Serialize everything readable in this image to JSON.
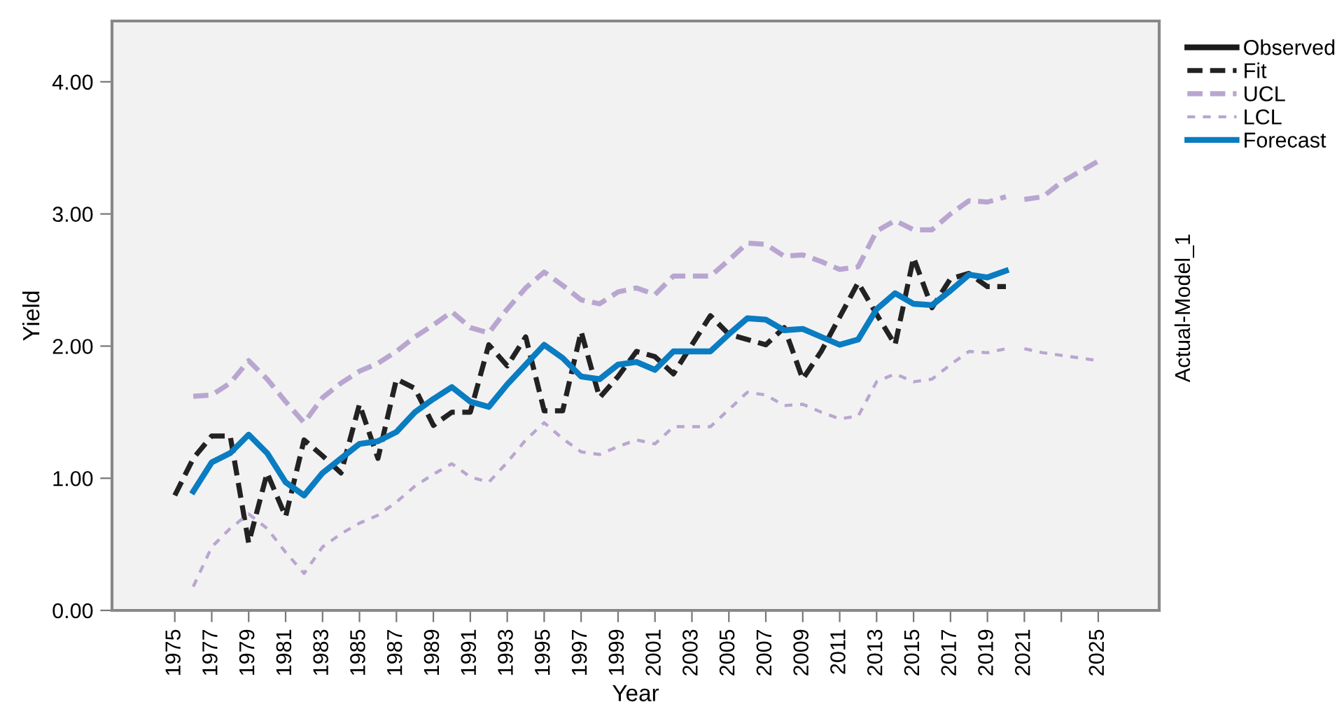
{
  "chart_data": {
    "type": "line",
    "xlabel": "Year",
    "ylabel": "Yield",
    "annotations": [
      "Actual-Model_1"
    ],
    "xlim": [
      1971.6,
      2028.3
    ],
    "xticks": [
      1975,
      1977,
      1979,
      1981,
      1983,
      1985,
      1987,
      1989,
      1991,
      1993,
      1995,
      1997,
      1999,
      2001,
      2003,
      2005,
      2007,
      2009,
      2011,
      2013,
      2015,
      2017,
      2019,
      2021,
      {
        "value": 2023,
        "label": null
      },
      2025
    ],
    "ylim": [
      0,
      4.46
    ],
    "yticks": [
      {
        "value": 0,
        "label": "0.00"
      },
      {
        "value": 1,
        "label": "1.00"
      },
      {
        "value": 2,
        "label": "2.00"
      },
      {
        "value": 3,
        "label": "3.00"
      },
      {
        "value": 4,
        "label": "4.00"
      }
    ],
    "grid": false,
    "legend": "top right",
    "marker": "none",
    "series": [
      {
        "name": "Observed",
        "color": "#1a1a1a",
        "line_style": "solid"
      },
      {
        "name": "Fit",
        "color": "#222222",
        "line_style": "dashed",
        "x": [
          1975,
          1976,
          1977,
          1978,
          1979,
          1980,
          1981,
          1982,
          1983,
          1984,
          1985,
          1986,
          1987,
          1988,
          1989,
          1990,
          1991,
          1992,
          1993,
          1994,
          1995,
          1996,
          1997,
          1998,
          1999,
          2000,
          2001,
          2002,
          2003,
          2004,
          2005,
          2006,
          2007,
          2008,
          2009,
          2010,
          2011,
          2012,
          2013,
          2014,
          2015,
          2016,
          2017,
          2018,
          2019,
          2020
        ],
        "values": [
          0.87,
          1.15,
          1.32,
          1.32,
          0.51,
          1.04,
          0.71,
          1.29,
          1.17,
          1.04,
          1.56,
          1.15,
          1.75,
          1.68,
          1.4,
          1.5,
          1.5,
          2.01,
          1.85,
          2.07,
          1.51,
          1.51,
          2.11,
          1.61,
          1.77,
          1.96,
          1.92,
          1.79,
          2.01,
          2.23,
          2.09,
          2.05,
          2.01,
          2.14,
          1.75,
          1.96,
          2.22,
          2.48,
          2.24,
          2.01,
          2.67,
          2.29,
          2.51,
          2.55,
          2.45,
          2.45
        ]
      },
      {
        "name": "UCL",
        "color": "#b9a6d0",
        "line_style": "dashed",
        "x": [
          1976,
          1977,
          1978,
          1979,
          1980,
          1981,
          1982,
          1983,
          1984,
          1985,
          1986,
          1987,
          1988,
          1989,
          1990,
          1991,
          1992,
          1993,
          1994,
          1995,
          1996,
          1997,
          1998,
          1999,
          2000,
          2001,
          2002,
          2003,
          2004,
          2005,
          2006,
          2007,
          2008,
          2009,
          2010,
          2011,
          2012,
          2013,
          2014,
          2015,
          2016,
          2017,
          2018,
          2019,
          2020
        ],
        "values": [
          1.62,
          1.63,
          1.72,
          1.89,
          1.75,
          1.58,
          1.42,
          1.61,
          1.72,
          1.81,
          1.87,
          1.96,
          2.07,
          2.16,
          2.26,
          2.14,
          2.1,
          2.28,
          2.44,
          2.56,
          2.46,
          2.35,
          2.32,
          2.41,
          2.44,
          2.39,
          2.53,
          2.53,
          2.53,
          2.65,
          2.78,
          2.77,
          2.68,
          2.69,
          2.64,
          2.58,
          2.6,
          2.87,
          2.95,
          2.88,
          2.88,
          3.0,
          3.1,
          3.09,
          3.13
        ]
      },
      {
        "color": "#b9a6d0",
        "line_style": "dashed",
        "x": [
          2021,
          2022,
          2023,
          2024,
          2025
        ],
        "values": [
          3.11,
          3.13,
          3.24,
          3.32,
          3.4
        ]
      },
      {
        "name": "LCL",
        "color": "#b9a6d0",
        "line_style": "dotted",
        "x": [
          1976,
          1977,
          1978,
          1979,
          1980,
          1981,
          1982,
          1983,
          1984,
          1985,
          1986,
          1987,
          1988,
          1989,
          1990,
          1991,
          1992,
          1993,
          1994,
          1995,
          1996,
          1997,
          1998,
          1999,
          2000,
          2001,
          2002,
          2003,
          2004,
          2005,
          2006,
          2007,
          2008,
          2009,
          2010,
          2011,
          2012,
          2013,
          2014,
          2015,
          2016,
          2017,
          2018,
          2019,
          2020
        ],
        "values": [
          0.18,
          0.48,
          0.62,
          0.73,
          0.62,
          0.44,
          0.28,
          0.48,
          0.58,
          0.66,
          0.72,
          0.82,
          0.94,
          1.03,
          1.11,
          1.01,
          0.97,
          1.12,
          1.29,
          1.42,
          1.3,
          1.2,
          1.18,
          1.24,
          1.29,
          1.26,
          1.39,
          1.39,
          1.39,
          1.52,
          1.65,
          1.63,
          1.55,
          1.56,
          1.5,
          1.45,
          1.47,
          1.73,
          1.79,
          1.73,
          1.75,
          1.86,
          1.96,
          1.95,
          1.98
        ]
      },
      {
        "color": "#b9a6d0",
        "line_style": "dotted",
        "x": [
          2021,
          2022,
          2023,
          2024,
          2025
        ],
        "values": [
          1.98,
          1.95,
          1.93,
          1.91,
          1.89
        ]
      },
      {
        "name": "Forecast",
        "color": "#0a7cc1",
        "line_style": "solid",
        "x": [
          1976,
          1977,
          1978,
          1979,
          1980,
          1981,
          1982,
          1983,
          1984,
          1985,
          1986,
          1987,
          1988,
          1989,
          1990,
          1991,
          1992,
          1993,
          1994,
          1995,
          1996,
          1997,
          1998,
          1999,
          2000,
          2001,
          2002,
          2003,
          2004,
          2005,
          2006,
          2007,
          2008,
          2009,
          2010,
          2011,
          2012,
          2013,
          2014,
          2015,
          2016,
          2017,
          2018,
          2019,
          2020
        ],
        "values": [
          0.9,
          1.12,
          1.19,
          1.33,
          1.19,
          0.97,
          0.87,
          1.04,
          1.15,
          1.26,
          1.28,
          1.35,
          1.5,
          1.6,
          1.69,
          1.58,
          1.54,
          1.71,
          1.86,
          2.01,
          1.91,
          1.77,
          1.75,
          1.86,
          1.88,
          1.82,
          1.96,
          1.96,
          1.96,
          2.09,
          2.21,
          2.2,
          2.12,
          2.13,
          2.07,
          2.01,
          2.05,
          2.28,
          2.4,
          2.32,
          2.31,
          2.42,
          2.54,
          2.52,
          2.57
        ]
      }
    ]
  }
}
